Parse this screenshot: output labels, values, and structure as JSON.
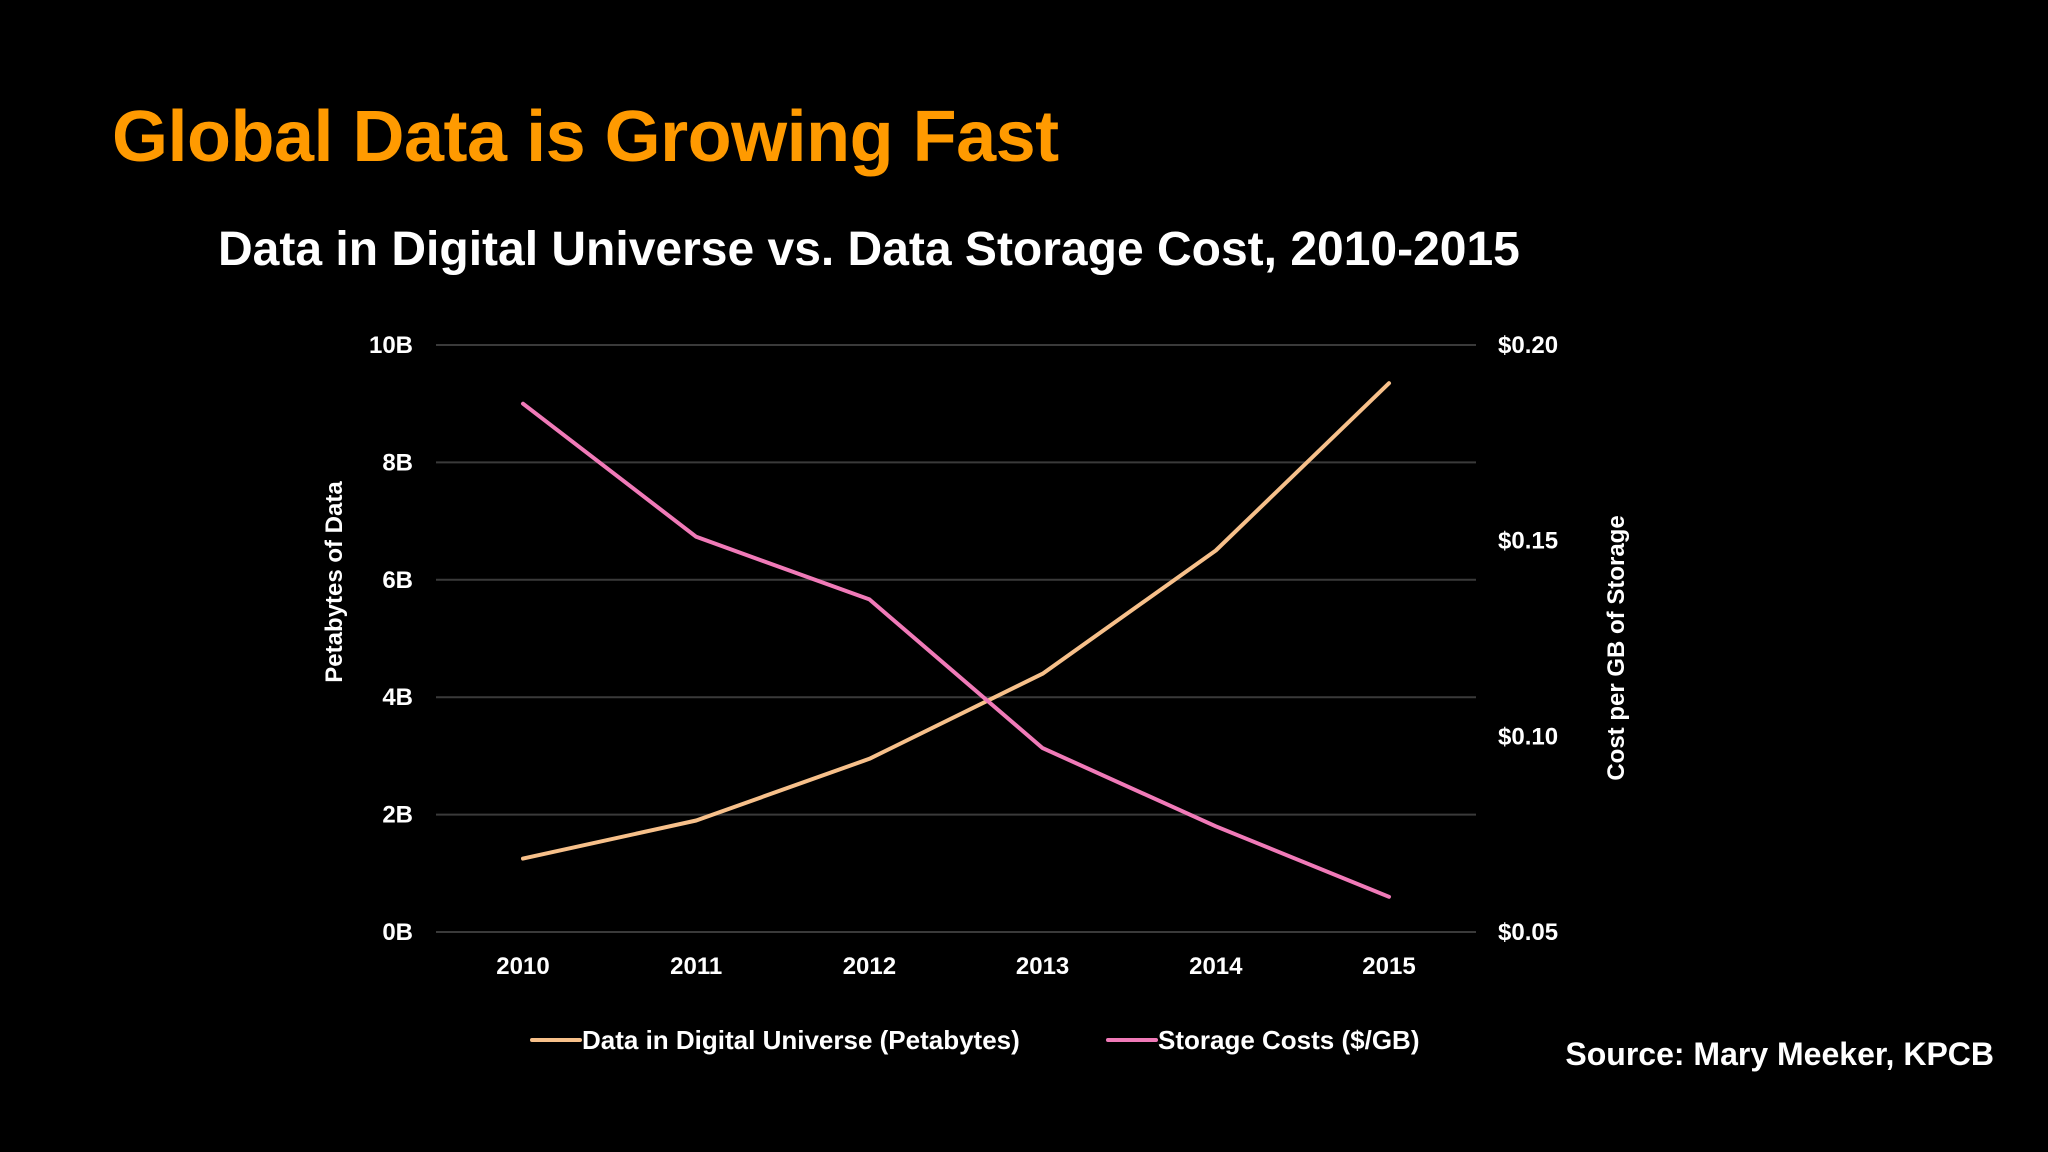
{
  "slide": {
    "title": "Global Data is Growing Fast",
    "source": "Source: Mary Meeker, KPCB"
  },
  "chart_data": {
    "type": "line",
    "title": "Data in Digital Universe vs. Data Storage Cost, 2010-2015",
    "categories": [
      "2010",
      "2011",
      "2012",
      "2013",
      "2014",
      "2015"
    ],
    "xlabel": "",
    "y_left": {
      "label": "Petabytes of Data",
      "ticks": [
        "0B",
        "2B",
        "4B",
        "6B",
        "8B",
        "10B"
      ],
      "tick_values": [
        0,
        2,
        4,
        6,
        8,
        10
      ],
      "range": [
        0,
        10
      ]
    },
    "y_right": {
      "label": "Cost per GB of Storage",
      "ticks": [
        "$0.05",
        "$0.10",
        "$0.15",
        "$0.20"
      ],
      "tick_values": [
        0.05,
        0.1,
        0.15,
        0.2
      ],
      "range": [
        0.05,
        0.2
      ]
    },
    "series": [
      {
        "name": "Data in Digital Universe (Petabytes)",
        "axis": "left",
        "color": "#f7c08a",
        "values": [
          1.25,
          1.9,
          2.95,
          4.4,
          6.5,
          9.35
        ]
      },
      {
        "name": "Storage Costs ($/GB)",
        "axis": "right",
        "color": "#f07ab8",
        "values": [
          0.185,
          0.151,
          0.135,
          0.097,
          0.077,
          0.059
        ]
      }
    ],
    "grid": true,
    "grid_color": "#3a3a3a",
    "legend_position": "bottom"
  }
}
